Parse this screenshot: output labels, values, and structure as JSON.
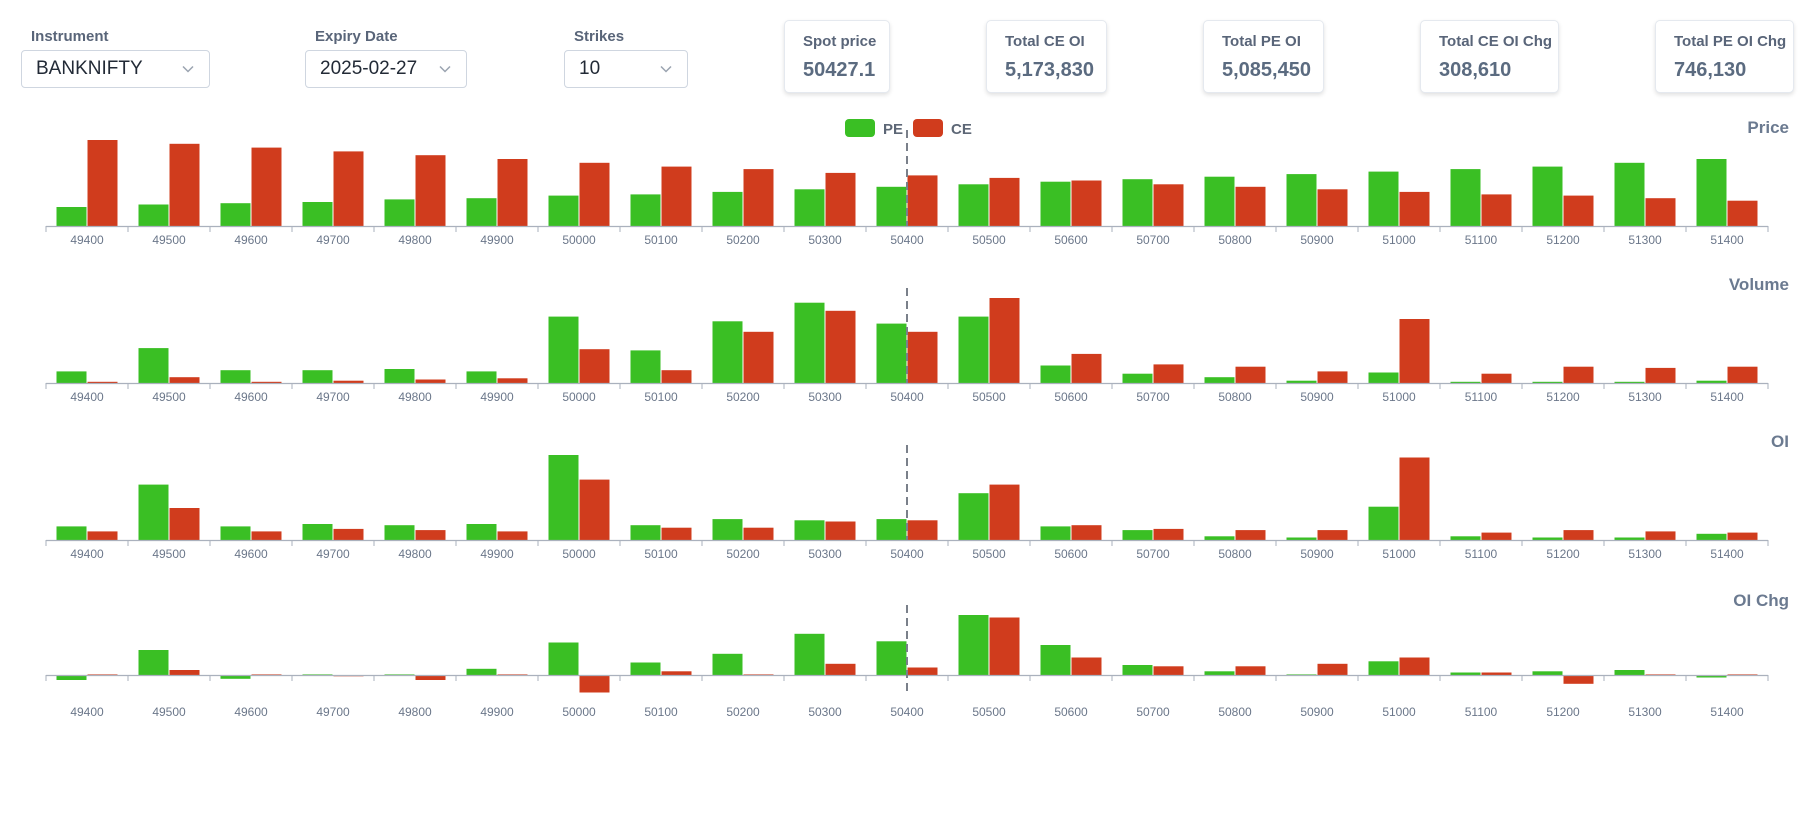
{
  "controls": {
    "instrument": {
      "label": "Instrument",
      "value": "BANKNIFTY"
    },
    "expiry": {
      "label": "Expiry Date",
      "value": "2025-02-27"
    },
    "strikes": {
      "label": "Strikes",
      "value": "10"
    }
  },
  "cards": {
    "spot": {
      "label": "Spot price",
      "value": "50427.1"
    },
    "total_ce_oi": {
      "label": "Total CE OI",
      "value": "5,173,830"
    },
    "total_pe_oi": {
      "label": "Total PE OI",
      "value": "5,085,450"
    },
    "total_ce_oi_chg": {
      "label": "Total CE OI Chg",
      "value": "308,610"
    },
    "total_pe_oi_chg": {
      "label": "Total PE OI Chg",
      "value": "746,130"
    }
  },
  "colors": {
    "pe": "#3abf24",
    "ce": "#d03c1d",
    "axis": "#aab1bd",
    "tick_text": "#6b778a",
    "title": "#6b7a90",
    "spot_line": "#7a808a"
  },
  "legend": [
    {
      "name": "PE",
      "color": "#3abf24"
    },
    {
      "name": "CE",
      "color": "#d03c1d"
    }
  ],
  "chart_data": [
    {
      "type": "bar",
      "title": "Price",
      "categories": [
        "49400",
        "49500",
        "49600",
        "49700",
        "49800",
        "49900",
        "50000",
        "50100",
        "50200",
        "50300",
        "50400",
        "50500",
        "50600",
        "50700",
        "50800",
        "50900",
        "51000",
        "51100",
        "51200",
        "51300",
        "51400"
      ],
      "series": [
        {
          "name": "PE",
          "values": [
            15,
            17,
            18,
            19,
            21,
            22,
            24,
            25,
            27,
            29,
            31,
            33,
            35,
            37,
            39,
            41,
            43,
            45,
            47,
            50,
            53
          ]
        },
        {
          "name": "CE",
          "values": [
            68,
            65,
            62,
            59,
            56,
            53,
            50,
            47,
            45,
            42,
            40,
            38,
            36,
            33,
            31,
            29,
            27,
            25,
            24,
            22,
            20
          ]
        }
      ],
      "spot_category": "50400",
      "legend_position": "top-center"
    },
    {
      "type": "bar",
      "title": "Volume",
      "categories": [
        "49400",
        "49500",
        "49600",
        "49700",
        "49800",
        "49900",
        "50000",
        "50100",
        "50200",
        "50300",
        "50400",
        "50500",
        "50600",
        "50700",
        "50800",
        "50900",
        "51000",
        "51100",
        "51200",
        "51300",
        "51400"
      ],
      "series": [
        {
          "name": "PE",
          "values": [
            10,
            30,
            11,
            11,
            12,
            10,
            57,
            28,
            53,
            69,
            51,
            57,
            15,
            8,
            5,
            2,
            9,
            1,
            1,
            1,
            2
          ]
        },
        {
          "name": "CE",
          "values": [
            1,
            5,
            1,
            2,
            3,
            4,
            29,
            11,
            44,
            62,
            44,
            73,
            25,
            16,
            14,
            10,
            55,
            8,
            14,
            13,
            14
          ]
        }
      ],
      "spot_category": "50400"
    },
    {
      "type": "bar",
      "title": "OI",
      "categories": [
        "49400",
        "49500",
        "49600",
        "49700",
        "49800",
        "49900",
        "50000",
        "50100",
        "50200",
        "50300",
        "50400",
        "50500",
        "50600",
        "50700",
        "50800",
        "50900",
        "51000",
        "51100",
        "51200",
        "51300",
        "51400"
      ],
      "series": [
        {
          "name": "PE",
          "values": [
            11,
            45,
            11,
            13,
            12,
            13,
            69,
            12,
            17,
            16,
            17,
            38,
            11,
            8,
            3,
            2,
            27,
            3,
            2,
            2,
            5
          ]
        },
        {
          "name": "CE",
          "values": [
            7,
            26,
            7,
            9,
            8,
            7,
            49,
            10,
            10,
            15,
            16,
            45,
            12,
            9,
            8,
            8,
            67,
            6,
            8,
            7,
            6
          ]
        }
      ],
      "spot_category": "50400"
    },
    {
      "type": "bar",
      "title": "OI Chg",
      "categories": [
        "49400",
        "49500",
        "49600",
        "49700",
        "49800",
        "49900",
        "50000",
        "50100",
        "50200",
        "50300",
        "50400",
        "50500",
        "50600",
        "50700",
        "50800",
        "50900",
        "51000",
        "51100",
        "51200",
        "51300",
        "51400"
      ],
      "series": [
        {
          "name": "PE",
          "values": [
            -4,
            20,
            -3,
            0.5,
            0.5,
            5,
            26,
            10,
            17,
            33,
            27,
            48,
            24,
            8,
            3,
            0.5,
            11,
            2,
            3,
            4,
            -2
          ]
        },
        {
          "name": "CE",
          "values": [
            0.5,
            4,
            0.5,
            -1,
            -4,
            0.5,
            -14,
            3,
            0.5,
            9,
            6,
            46,
            14,
            7,
            7,
            9,
            14,
            2,
            -7,
            0.5,
            0.5
          ]
        }
      ],
      "spot_category": "50400"
    }
  ]
}
